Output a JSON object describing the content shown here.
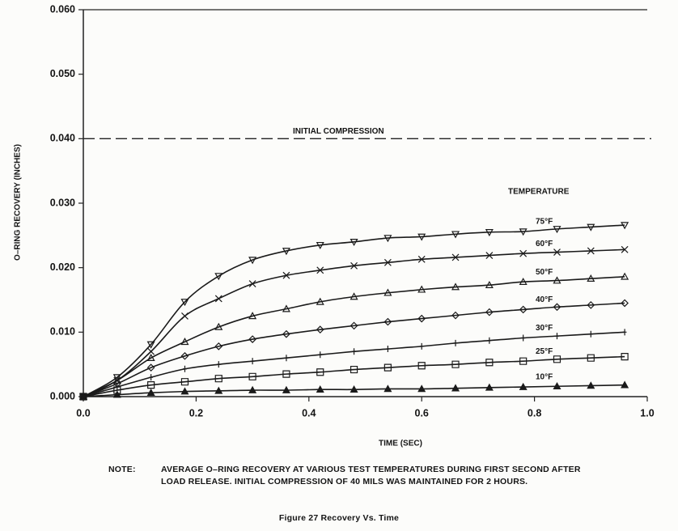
{
  "chart_data": {
    "type": "line",
    "x_label": "TIME (SEC)",
    "y_label": "O–RING RECOVERY (INCHES)",
    "legend_title": "TEMPERATURE",
    "reference_line": {
      "value": 0.04,
      "label": "INITIAL COMPRESSION"
    },
    "xlim": [
      0,
      1
    ],
    "xticks": [
      {
        "value": 0,
        "label": "0.0"
      },
      {
        "value": 0.2,
        "label": "0.2"
      },
      {
        "value": 0.4,
        "label": "0.4"
      },
      {
        "value": 0.6,
        "label": "0.6"
      },
      {
        "value": 0.8,
        "label": "0.8"
      },
      {
        "value": 1,
        "label": "1.0"
      }
    ],
    "ylim": [
      0,
      0.06
    ],
    "yticks": [
      {
        "value": 0,
        "label": "0.000"
      },
      {
        "value": 0.01,
        "label": "0.010"
      },
      {
        "value": 0.02,
        "label": "0.020"
      },
      {
        "value": 0.03,
        "label": "0.030"
      },
      {
        "value": 0.04,
        "label": "0.040"
      },
      {
        "value": 0.05,
        "label": "0.050"
      },
      {
        "value": 0.06,
        "label": "0.060"
      }
    ],
    "x": [
      0,
      0.06,
      0.12,
      0.18,
      0.24,
      0.3,
      0.36,
      0.42,
      0.48,
      0.54,
      0.6,
      0.66,
      0.72,
      0.78,
      0.84,
      0.9,
      0.96
    ],
    "series": [
      {
        "name": "75°F",
        "color": "#1a1a1a",
        "marker": "triangle-down",
        "values": [
          0,
          0.003,
          0.0081,
          0.0147,
          0.0187,
          0.0212,
          0.0226,
          0.0235,
          0.024,
          0.0246,
          0.0248,
          0.0252,
          0.0255,
          0.0256,
          0.026,
          0.0263,
          0.0266
        ]
      },
      {
        "name": "60°F",
        "color": "#1a1a1a",
        "marker": "x",
        "values": [
          0,
          0.0025,
          0.007,
          0.0125,
          0.0152,
          0.0175,
          0.0188,
          0.0196,
          0.0203,
          0.0208,
          0.0213,
          0.0216,
          0.0219,
          0.0222,
          0.0224,
          0.0226,
          0.0228
        ]
      },
      {
        "name": "50°F",
        "color": "#1a1a1a",
        "marker": "triangle",
        "values": [
          0,
          0.0025,
          0.006,
          0.0085,
          0.0108,
          0.0125,
          0.0136,
          0.0147,
          0.0155,
          0.0161,
          0.0166,
          0.017,
          0.0173,
          0.0178,
          0.018,
          0.0183,
          0.0186
        ]
      },
      {
        "name": "40°F",
        "color": "#1a1a1a",
        "marker": "diamond",
        "values": [
          0,
          0.002,
          0.0045,
          0.0063,
          0.0078,
          0.0089,
          0.0097,
          0.0104,
          0.011,
          0.0116,
          0.0121,
          0.0126,
          0.0131,
          0.0135,
          0.0139,
          0.0142,
          0.0145
        ]
      },
      {
        "name": "30°F",
        "color": "#1a1a1a",
        "marker": "plus",
        "values": [
          0,
          0.0015,
          0.003,
          0.0043,
          0.005,
          0.0055,
          0.006,
          0.0065,
          0.007,
          0.0074,
          0.0078,
          0.0083,
          0.0087,
          0.0091,
          0.0094,
          0.0097,
          0.01
        ]
      },
      {
        "name": "25°F",
        "color": "#1a1a1a",
        "marker": "square",
        "values": [
          0,
          0.001,
          0.0018,
          0.0023,
          0.0028,
          0.0031,
          0.0035,
          0.0038,
          0.0042,
          0.0045,
          0.0048,
          0.005,
          0.0053,
          0.0055,
          0.0058,
          0.006,
          0.0062
        ]
      },
      {
        "name": "10°F",
        "color": "#1a1a1a",
        "marker": "filled-triangle",
        "values": [
          0,
          0.0003,
          0.0006,
          0.0008,
          0.0009,
          0.001,
          0.001,
          0.0011,
          0.0011,
          0.0012,
          0.0012,
          0.0013,
          0.0014,
          0.0015,
          0.0016,
          0.0017,
          0.0018
        ]
      }
    ],
    "note_label": "NOTE:",
    "note": [
      "AVERAGE O–RING RECOVERY AT VARIOUS TEST TEMPERATURES DURING FIRST SECOND AFTER",
      "LOAD RELEASE.  INITIAL COMPRESSION OF 40 MILS WAS MAINTAINED FOR 2 HOURS."
    ],
    "caption": "Figure 27  Recovery Vs. Time"
  }
}
